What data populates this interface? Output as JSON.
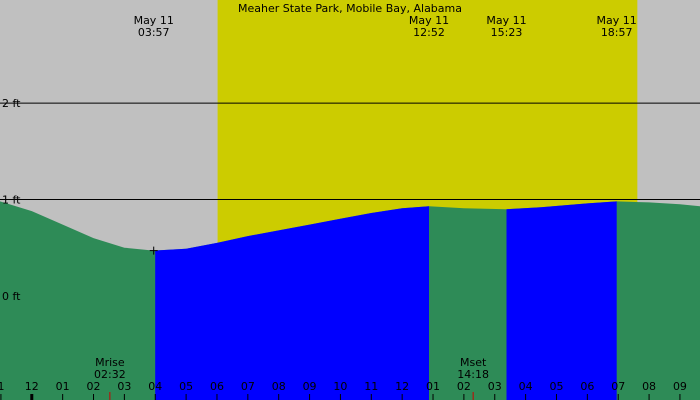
{
  "chart_data": {
    "type": "area",
    "title": "Meaher State Park, Mobile Bay, Alabama",
    "y_unit": "ft",
    "ylim": [
      -1.08,
      3.07
    ],
    "y_ticks": [
      {
        "value": 2,
        "label": "2 ft"
      },
      {
        "value": 1,
        "label": "1 ft"
      },
      {
        "value": 0,
        "label": "0 ft"
      }
    ],
    "x_range_hours": [
      -1.03,
      21.65
    ],
    "x_ticks": [
      {
        "hour": -1,
        "label": "1"
      },
      {
        "hour": 0,
        "label": "12"
      },
      {
        "hour": 1,
        "label": "01"
      },
      {
        "hour": 2,
        "label": "02"
      },
      {
        "hour": 3,
        "label": "03"
      },
      {
        "hour": 4,
        "label": "04"
      },
      {
        "hour": 5,
        "label": "05"
      },
      {
        "hour": 6,
        "label": "06"
      },
      {
        "hour": 7,
        "label": "07"
      },
      {
        "hour": 8,
        "label": "08"
      },
      {
        "hour": 9,
        "label": "09"
      },
      {
        "hour": 10,
        "label": "10"
      },
      {
        "hour": 11,
        "label": "11"
      },
      {
        "hour": 12,
        "label": "12"
      },
      {
        "hour": 13,
        "label": "01"
      },
      {
        "hour": 14,
        "label": "02"
      },
      {
        "hour": 15,
        "label": "03"
      },
      {
        "hour": 16,
        "label": "04"
      },
      {
        "hour": 17,
        "label": "05"
      },
      {
        "hour": 18,
        "label": "06"
      },
      {
        "hour": 19,
        "label": "07"
      },
      {
        "hour": 20,
        "label": "08"
      },
      {
        "hour": 21,
        "label": "09"
      }
    ],
    "daylight_hours": [
      6.02,
      19.62
    ],
    "tide_series": [
      {
        "hour": -1.03,
        "ft": 0.98
      },
      {
        "hour": 0.0,
        "ft": 0.88
      },
      {
        "hour": 1.0,
        "ft": 0.74
      },
      {
        "hour": 2.0,
        "ft": 0.6
      },
      {
        "hour": 3.0,
        "ft": 0.5
      },
      {
        "hour": 3.95,
        "ft": 0.47
      },
      {
        "hour": 5.0,
        "ft": 0.49
      },
      {
        "hour": 6.0,
        "ft": 0.55
      },
      {
        "hour": 7.0,
        "ft": 0.62
      },
      {
        "hour": 8.0,
        "ft": 0.68
      },
      {
        "hour": 9.0,
        "ft": 0.74
      },
      {
        "hour": 10.0,
        "ft": 0.8
      },
      {
        "hour": 11.0,
        "ft": 0.86
      },
      {
        "hour": 12.0,
        "ft": 0.91
      },
      {
        "hour": 12.87,
        "ft": 0.93
      },
      {
        "hour": 14.0,
        "ft": 0.91
      },
      {
        "hour": 15.38,
        "ft": 0.9
      },
      {
        "hour": 16.5,
        "ft": 0.92
      },
      {
        "hour": 18.0,
        "ft": 0.96
      },
      {
        "hour": 18.95,
        "ft": 0.98
      },
      {
        "hour": 20.0,
        "ft": 0.97
      },
      {
        "hour": 21.0,
        "ft": 0.95
      },
      {
        "hour": 21.65,
        "ft": 0.93
      }
    ],
    "flood_intervals": [
      [
        4.0,
        12.87
      ],
      [
        15.38,
        18.95
      ]
    ],
    "events": [
      {
        "date": "May 11",
        "time": "03:57",
        "hour": 3.95,
        "ft": 0.47,
        "low_marker": true
      },
      {
        "date": "May 11",
        "time": "12:52",
        "hour": 12.87
      },
      {
        "date": "May 11",
        "time": "15:23",
        "hour": 15.38
      },
      {
        "date": "May 11",
        "time": "18:57",
        "hour": 18.95
      }
    ],
    "moon": [
      {
        "label": "Mrise",
        "time": "02:32",
        "hour": 2.53
      },
      {
        "label": "Mset",
        "time": "14:18",
        "hour": 14.3
      }
    ],
    "colors": {
      "night": "#c0c0c0",
      "day": "#cccc00",
      "water": "#2e8b57",
      "flood": "#0000ff",
      "grid": "#000000",
      "moon_tick": "#cc0000"
    }
  }
}
